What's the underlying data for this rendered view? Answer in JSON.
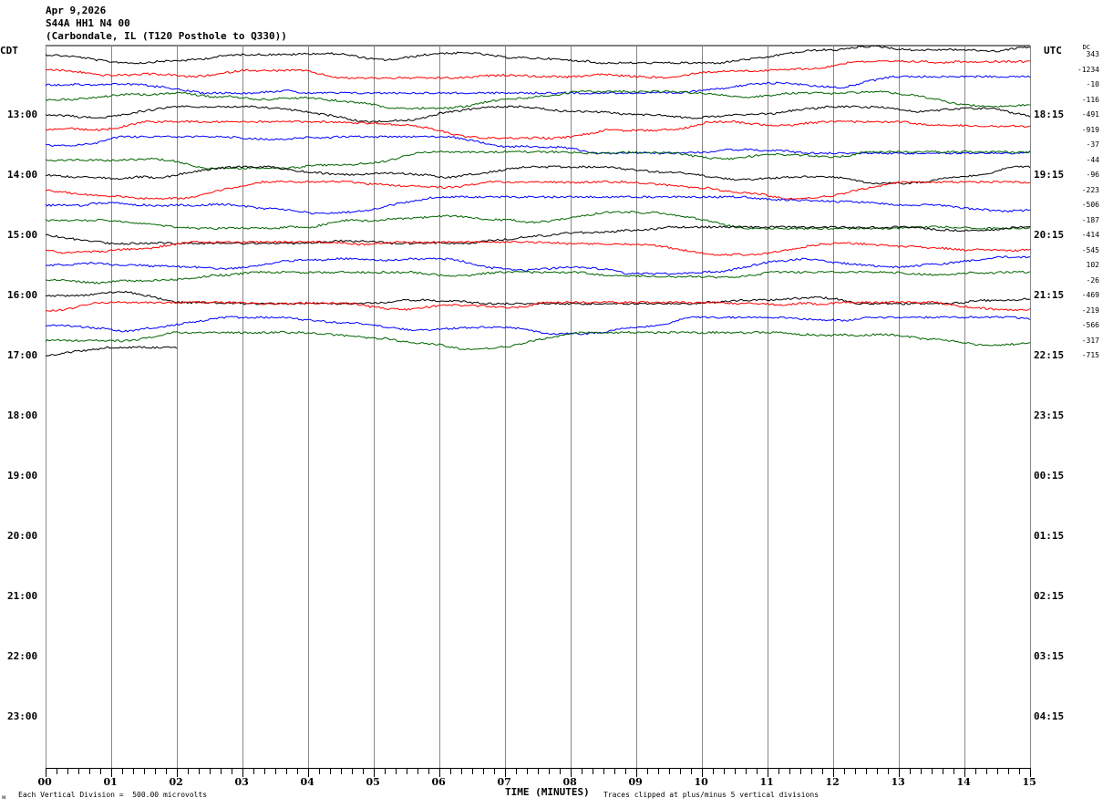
{
  "header": {
    "date": "Apr 9,2026",
    "station": "S44A HH1 N4 00",
    "location": "(Carbondale, IL (T120 Posthole to Q330))"
  },
  "left_timezone": "CDT",
  "right_timezone": "UTC",
  "dc_label": "DC",
  "footer": {
    "scale_note": "Each Vertical Division =  500.00 microvolts",
    "xlabel": "TIME (MINUTES)",
    "clip_note": "Traces clipped at plus/minus 5 vertical divisions",
    "corner_mark": "ᴍ"
  },
  "chart_data": {
    "type": "line",
    "title": "Apr 9,2026 S44A HH1 N4 00",
    "xlabel": "TIME (MINUTES)",
    "xlim": [
      0,
      15
    ],
    "x_ticks": [
      "00",
      "01",
      "02",
      "03",
      "04",
      "05",
      "06",
      "07",
      "08",
      "09",
      "10",
      "11",
      "12",
      "13",
      "14",
      "15"
    ],
    "left_hour_labels": [
      "13:00",
      "14:00",
      "15:00",
      "16:00",
      "17:00",
      "18:00",
      "19:00",
      "20:00",
      "21:00",
      "22:00",
      "23:00"
    ],
    "right_hour_labels": [
      "18:15",
      "19:15",
      "20:15",
      "21:15",
      "22:15",
      "23:15",
      "00:15",
      "01:15",
      "02:15",
      "03:15",
      "04:15"
    ],
    "rows_per_hour": 4,
    "trace_colors": [
      "#000000",
      "#ff0000",
      "#0000ff",
      "#006400"
    ],
    "grid": true,
    "traces": [
      {
        "start": "12:00",
        "dc": "343"
      },
      {
        "start": "12:15",
        "dc": "-1234"
      },
      {
        "start": "12:30",
        "dc": "-10"
      },
      {
        "start": "12:45",
        "dc": "-116"
      },
      {
        "start": "13:00",
        "dc": "-491"
      },
      {
        "start": "13:15",
        "dc": "-919"
      },
      {
        "start": "13:30",
        "dc": "-37"
      },
      {
        "start": "13:45",
        "dc": "-44"
      },
      {
        "start": "14:00",
        "dc": "-96"
      },
      {
        "start": "14:15",
        "dc": "-223"
      },
      {
        "start": "14:30",
        "dc": "-506"
      },
      {
        "start": "14:45",
        "dc": "-187"
      },
      {
        "start": "15:00",
        "dc": "-414"
      },
      {
        "start": "15:15",
        "dc": "-545"
      },
      {
        "start": "15:30",
        "dc": "102"
      },
      {
        "start": "15:45",
        "dc": "-26"
      },
      {
        "start": "16:00",
        "dc": "-469"
      },
      {
        "start": "16:15",
        "dc": "-219"
      },
      {
        "start": "16:30",
        "dc": "-566"
      },
      {
        "start": "16:45",
        "dc": "-317"
      },
      {
        "start": "17:00",
        "dc": "-715",
        "end_minute": 2
      }
    ]
  }
}
